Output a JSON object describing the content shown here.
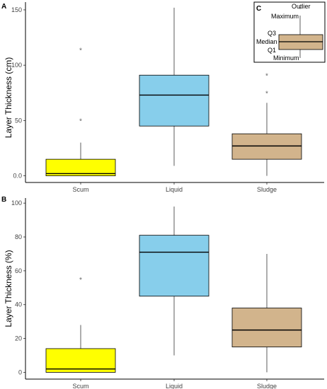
{
  "chart_data": [
    {
      "type": "box",
      "panel_label": "A",
      "ylabel": "Layer Thickness (cm)",
      "xlabel": "",
      "categories": [
        "Scum",
        "Liquid",
        "Sludge"
      ],
      "ylim": [
        -6,
        157
      ],
      "yticks": [
        "0.0",
        "50",
        "100",
        "150"
      ],
      "ytick_values": [
        0,
        50,
        100,
        150
      ],
      "grid": false,
      "boxes": [
        {
          "category": "Scum",
          "min": 0,
          "q1": 0,
          "median": 2,
          "q3": 15,
          "max": 30,
          "outliers": [
            50,
            114
          ],
          "color": "#ffff00"
        },
        {
          "category": "Liquid",
          "min": 9,
          "q1": 45,
          "median": 73,
          "q3": 91,
          "max": 152,
          "outliers": [],
          "color": "#87ceeb"
        },
        {
          "category": "Sludge",
          "min": 0,
          "q1": 15,
          "median": 27,
          "q3": 38,
          "max": 66,
          "outliers": [
            75,
            91
          ],
          "color": "#d2b48c"
        }
      ]
    },
    {
      "type": "box",
      "panel_label": "B",
      "ylabel": "Layer Thickness (%)",
      "xlabel": "",
      "categories": [
        "Scum",
        "Liquid",
        "Sludge"
      ],
      "ylim": [
        -4,
        103
      ],
      "yticks": [
        "0",
        "20",
        "40",
        "60",
        "80",
        "100"
      ],
      "ytick_values": [
        0,
        20,
        40,
        60,
        80,
        100
      ],
      "grid": false,
      "boxes": [
        {
          "category": "Scum",
          "min": 0,
          "q1": 0,
          "median": 2,
          "q3": 14,
          "max": 28,
          "outliers": [
            55
          ],
          "color": "#ffff00"
        },
        {
          "category": "Liquid",
          "min": 10,
          "q1": 45,
          "median": 71,
          "q3": 81,
          "max": 98,
          "outliers": [],
          "color": "#87ceeb"
        },
        {
          "category": "Sludge",
          "min": 0,
          "q1": 15,
          "median": 25,
          "q3": 38,
          "max": 70,
          "outliers": [],
          "color": "#d2b48c"
        }
      ]
    }
  ],
  "legend_panel": {
    "label": "C",
    "labels": {
      "outlier": "Outlier",
      "maximum": "Maximum",
      "q3": "Q3",
      "median": "Median",
      "q1": "Q1",
      "minimum": "Minimum"
    },
    "box_color": "#d2b48c"
  },
  "colors": {
    "axis": "#000000",
    "outlier": "#666666",
    "whisker": "#333333"
  }
}
